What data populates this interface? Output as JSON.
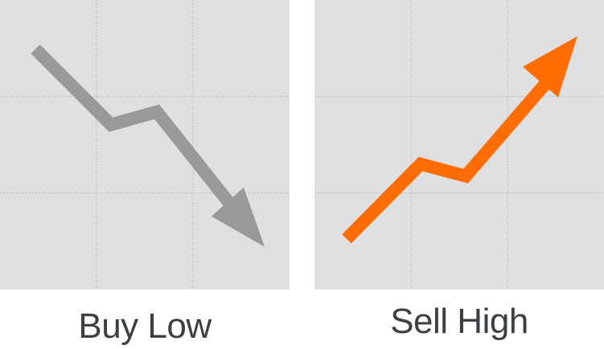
{
  "panels": [
    {
      "caption": "Buy Low",
      "trend": "down",
      "arrow_color": "#999999",
      "arrow_icon": "trend-down-arrow-icon"
    },
    {
      "caption": "Sell High",
      "trend": "up",
      "arrow_color": "#ff6d00",
      "arrow_icon": "trend-up-arrow-icon"
    }
  ],
  "colors": {
    "panel_background": "#dfe0e2",
    "grid_line": "#b9babc",
    "caption_text": "#3c4043"
  }
}
